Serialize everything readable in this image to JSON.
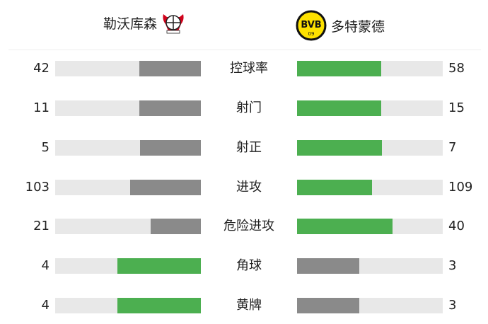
{
  "header": {
    "home_team": "勒沃库森",
    "away_team": "多特蒙德",
    "home_logo_icon": "bayer-leverkusen-crest",
    "away_logo_icon": "bvb-crest",
    "away_logo_text": "BVB 09"
  },
  "colors": {
    "leader": "#4caf50",
    "trailer": "#8a8a8a",
    "track": "#e8e8e8"
  },
  "stats": [
    {
      "label": "控球率",
      "home": "42",
      "away": "58"
    },
    {
      "label": "射门",
      "home": "11",
      "away": "15"
    },
    {
      "label": "射正",
      "home": "5",
      "away": "7"
    },
    {
      "label": "进攻",
      "home": "103",
      "away": "109"
    },
    {
      "label": "危险进攻",
      "home": "21",
      "away": "40"
    },
    {
      "label": "角球",
      "home": "4",
      "away": "3"
    },
    {
      "label": "黄牌",
      "home": "4",
      "away": "3"
    }
  ]
}
